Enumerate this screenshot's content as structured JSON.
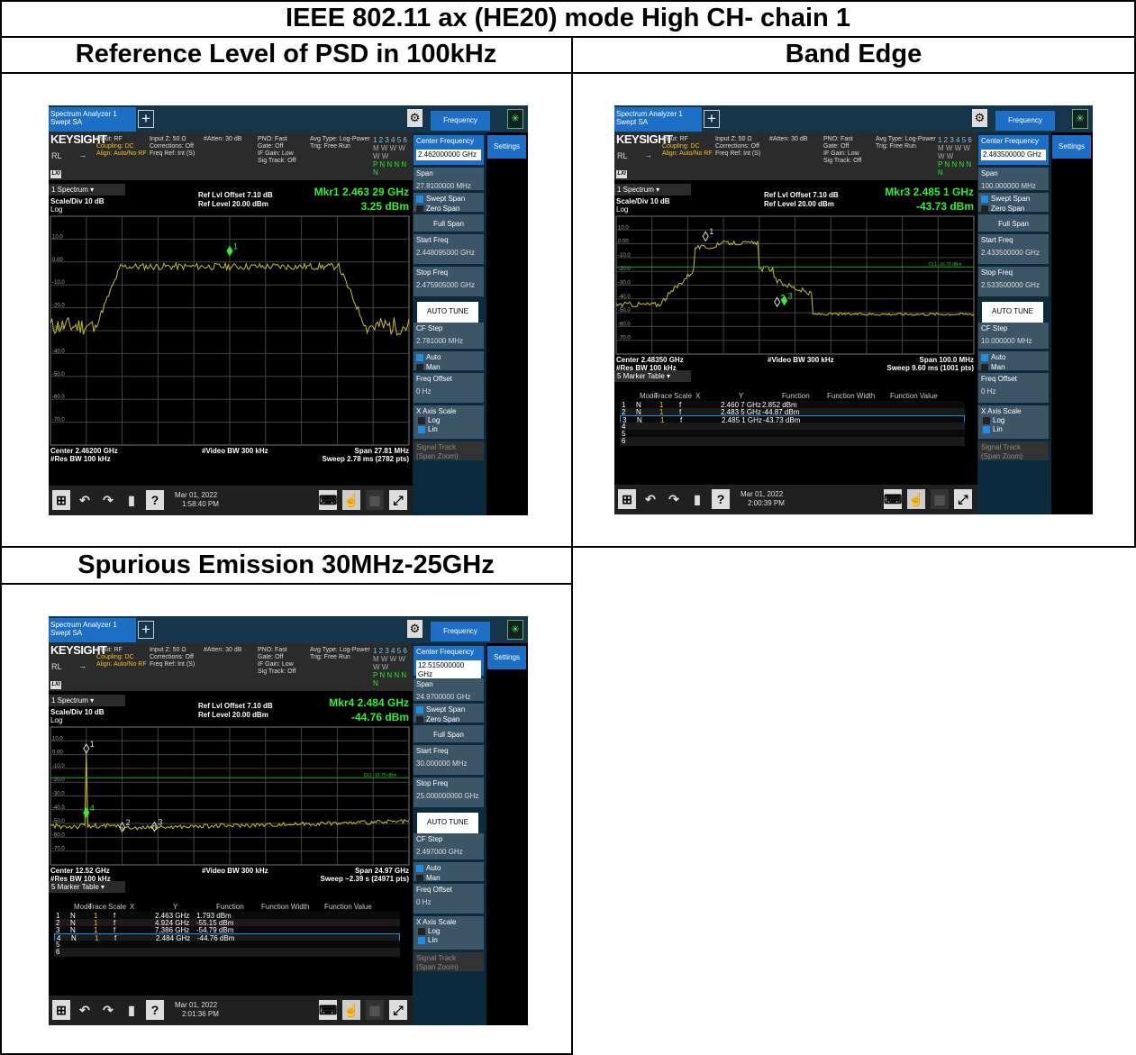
{
  "page_title": "IEEE 802.11 ax (HE20) mode High CH- chain 1",
  "cells": [
    {
      "title": "Reference Level of PSD in 100kHz"
    },
    {
      "title": "Band Edge"
    },
    {
      "title": "Spurious Emission 30MHz-25GHz"
    }
  ],
  "common": {
    "tab_line1": "Spectrum Analyzer 1",
    "tab_line2": "Swept SA",
    "freq_tab": "Frequency",
    "settings_tab": "Settings",
    "keysight": "KEYSIGHT",
    "rl": "RL",
    "lxi": "LXI",
    "input": "Input: RF",
    "coupling": "Coupling: DC",
    "align": "Align: Auto/No RF",
    "inputz": "Input Z: 50 Ω",
    "corrections": "Corrections: Off",
    "freqref": "Freq Ref: Int (S)",
    "atten": "#Atten: 30 dB",
    "pno": "PNO: Fast",
    "gate": "Gate: Off",
    "ifgain": "IF Gain: Low",
    "sigtrack": "Sig Track: Off",
    "avgtype": "Avg Type: Log-Power",
    "trig": "Trig: Free Run",
    "trace_nums": "1 2 3 4 5 6",
    "trace_w": "M W W W W W",
    "trace_p": "P N N N N N",
    "spectrum": "1 Spectrum",
    "scale": "Scale/Div 10 dB",
    "log": "Log",
    "ref_offset": "Ref Lvl Offset 7.10 dB",
    "ref_level": "Ref Level 20.00 dBm",
    "video_bw": "#Video BW 300 kHz",
    "res_bw": "#Res BW 100 kHz",
    "auto_tune": "AUTO TUNE",
    "full_span": "Full Span",
    "swept_span": "Swept Span",
    "zero_span": "Zero Span",
    "center_freq_label": "Center Frequency",
    "span_label": "Span",
    "start_freq_label": "Start Freq",
    "stop_freq_label": "Stop Freq",
    "cf_step_label": "CF Step",
    "auto": "Auto",
    "man": "Man",
    "freq_offset_label": "Freq Offset",
    "freq_offset_val": "0 Hz",
    "xaxis_label": "X Axis Scale",
    "log_opt": "Log",
    "lin_opt": "Lin",
    "signal_track": "Signal Track",
    "span_zoom": "(Span Zoom)",
    "marker_table": "5 Marker Table",
    "dl1": "DL1 -16.75 dBm",
    "date": "Mar 01, 2022",
    "mt_headers": [
      "Mode",
      "Trace",
      "Scale",
      "X",
      "Y",
      "Function",
      "Function Width",
      "Function Value"
    ],
    "y_ticks": [
      "10.0",
      "0.00",
      "-10.0",
      "-20.0",
      "-30.0",
      "-40.0",
      "-50.0",
      "-60.0",
      "-70.0"
    ]
  },
  "shots": [
    {
      "center_frequency": "2.462000000 GHz",
      "span": "27.8100000 MHz",
      "start_freq": "2.448095000 GHz",
      "stop_freq": "2.475905000 GHz",
      "cf_step": "2.781000 MHz",
      "mkr_label": "Mkr1  2.463 29 GHz",
      "mkr_value": "3.25 dBm",
      "center": "Center 2.46200 GHz",
      "span_footer": "Span 27.81 MHz",
      "sweep": "Sweep 2.78 ms (2782 pts)",
      "time": "1:58:40 PM",
      "marker_num": "1"
    },
    {
      "center_frequency": "2.483500000 GHz",
      "span": "100.000000 MHz",
      "start_freq": "2.433500000 GHz",
      "stop_freq": "2.533500000 GHz",
      "cf_step": "10.000000 MHz",
      "mkr_label": "Mkr3  2.485 1 GHz",
      "mkr_value": "-43.73 dBm",
      "center": "Center 2.48350 GHz",
      "span_footer": "Span 100.0 MHz",
      "sweep": "Sweep 9.60 ms (1001 pts)",
      "time": "2:00:39 PM",
      "markers": [
        {
          "n": "1",
          "mode": "N",
          "trace": "1",
          "scale": "f",
          "x": "2.460 7 GHz",
          "y": "2.852 dBm"
        },
        {
          "n": "2",
          "mode": "N",
          "trace": "1",
          "scale": "f",
          "x": "2.483 5 GHz",
          "y": "-44.87 dBm"
        },
        {
          "n": "3",
          "mode": "N",
          "trace": "1",
          "scale": "f",
          "x": "2.485 1 GHz",
          "y": "-43.73 dBm"
        },
        {
          "n": "4"
        },
        {
          "n": "5"
        },
        {
          "n": "6"
        }
      ]
    },
    {
      "center_frequency": "12.515000000 GHz",
      "span": "24.9700000 GHz",
      "start_freq": "30.000000 MHz",
      "stop_freq": "25.000000000 GHz",
      "cf_step": "2.497000 GHz",
      "mkr_label": "Mkr4  2.484 GHz",
      "mkr_value": "-44.76 dBm",
      "center": "Center 12.52 GHz",
      "span_footer": "Span 24.97 GHz",
      "sweep": "Sweep ~2.39 s (24971 pts)",
      "time": "2:01:36 PM",
      "markers": [
        {
          "n": "1",
          "mode": "N",
          "trace": "1",
          "scale": "f",
          "x": "2.463 GHz",
          "y": "1.793 dBm"
        },
        {
          "n": "2",
          "mode": "N",
          "trace": "1",
          "scale": "f",
          "x": "4.924 GHz",
          "y": "-55.15 dBm"
        },
        {
          "n": "3",
          "mode": "N",
          "trace": "1",
          "scale": "f",
          "x": "7.386 GHz",
          "y": "-54.79 dBm"
        },
        {
          "n": "4",
          "mode": "N",
          "trace": "1",
          "scale": "f",
          "x": "2.484 GHz",
          "y": "-44.76 dBm"
        },
        {
          "n": "5"
        },
        {
          "n": "6"
        }
      ]
    }
  ]
}
